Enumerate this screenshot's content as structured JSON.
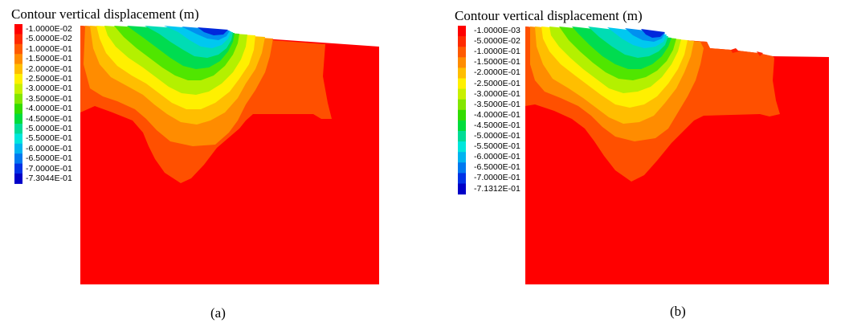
{
  "panels": [
    {
      "id": "a",
      "title": "Contour vertical displacement (m)",
      "caption": "(a)",
      "legend": [
        {
          "label": "-1.0000E-02",
          "color": "#ff0000"
        },
        {
          "label": "-5.0000E-02",
          "color": "#ff2a00"
        },
        {
          "label": "-1.0000E-01",
          "color": "#ff5a00"
        },
        {
          "label": "-1.5000E-01",
          "color": "#ff8c00"
        },
        {
          "label": "-2.0000E-01",
          "color": "#ffbe00"
        },
        {
          "label": "-2.5000E-01",
          "color": "#fff000"
        },
        {
          "label": "-3.0000E-01",
          "color": "#c8f000"
        },
        {
          "label": "-3.5000E-01",
          "color": "#82e600"
        },
        {
          "label": "-4.0000E-01",
          "color": "#32dc00"
        },
        {
          "label": "-4.5000E-01",
          "color": "#00dc3c"
        },
        {
          "label": "-5.0000E-01",
          "color": "#00dc96"
        },
        {
          "label": "-5.5000E-01",
          "color": "#00e6dc"
        },
        {
          "label": "-6.0000E-01",
          "color": "#00b4f0"
        },
        {
          "label": "-6.5000E-01",
          "color": "#0078f0"
        },
        {
          "label": "-7.0000E-01",
          "color": "#0032e6"
        },
        {
          "label": "-7.3044E-01",
          "color": "#0000c8"
        }
      ]
    },
    {
      "id": "b",
      "title": "Contour vertical displacement (m)",
      "caption": "(b)",
      "legend": [
        {
          "label": "-1.0000E-03",
          "color": "#ff0000"
        },
        {
          "label": "-5.0000E-02",
          "color": "#ff2a00"
        },
        {
          "label": "-1.0000E-01",
          "color": "#ff5a00"
        },
        {
          "label": "-1.5000E-01",
          "color": "#ff8c00"
        },
        {
          "label": "-2.0000E-01",
          "color": "#ffbe00"
        },
        {
          "label": "-2.5000E-01",
          "color": "#fff000"
        },
        {
          "label": "-3.0000E-01",
          "color": "#c8f000"
        },
        {
          "label": "-3.5000E-01",
          "color": "#82e600"
        },
        {
          "label": "-4.0000E-01",
          "color": "#32dc00"
        },
        {
          "label": "-4.5000E-01",
          "color": "#00dc3c"
        },
        {
          "label": "-5.0000E-01",
          "color": "#00dc96"
        },
        {
          "label": "-5.5000E-01",
          "color": "#00e6dc"
        },
        {
          "label": "-6.0000E-01",
          "color": "#00b4f0"
        },
        {
          "label": "-6.5000E-01",
          "color": "#0078f0"
        },
        {
          "label": "-7.0000E-01",
          "color": "#0032e6"
        },
        {
          "label": "-7.1312E-01",
          "color": "#0000c8"
        }
      ]
    }
  ]
}
